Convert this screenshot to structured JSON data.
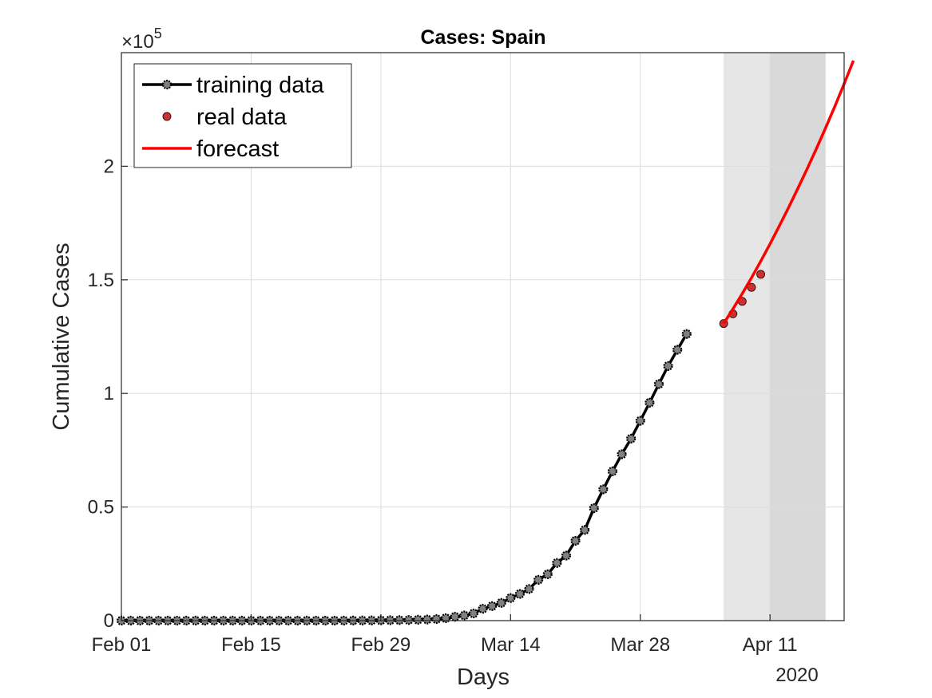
{
  "chart_data": {
    "type": "line",
    "title": "Cases: Spain",
    "xlabel": "Days",
    "ylabel": "Cumulative Cases",
    "exponent_label": "×10",
    "exponent_power": "5",
    "year_label": "2020",
    "x_start_date": "2020-02-01",
    "xlim": [
      "2020-02-01",
      "2020-04-19"
    ],
    "ylim": [
      0,
      250000
    ],
    "x_tick_labels": [
      "Feb 01",
      "Feb 15",
      "Feb 29",
      "Mar 14",
      "Mar 28",
      "Apr 11"
    ],
    "x_tick_dates": [
      "2020-02-01",
      "2020-02-15",
      "2020-02-29",
      "2020-03-14",
      "2020-03-28",
      "2020-04-11"
    ],
    "y_ticks": [
      0,
      0.5,
      1,
      1.5,
      2
    ],
    "y_tick_labels": [
      "0",
      "0.5",
      "1",
      "1.5",
      "2"
    ],
    "y_scale": 100000,
    "grid": true,
    "legend_position": "top-left",
    "shaded_regions": [
      {
        "from": "2020-04-06",
        "to": "2020-04-11",
        "color": "#e6e6e6"
      },
      {
        "from": "2020-04-11",
        "to": "2020-04-17",
        "color": "#d9d9d9"
      }
    ],
    "series": [
      {
        "name": "training data",
        "color": "#000000",
        "marker_color": "#808080",
        "start_date": "2020-02-01",
        "values": [
          0,
          0,
          0,
          0,
          0,
          0,
          0,
          0,
          0,
          2,
          2,
          2,
          2,
          2,
          2,
          2,
          2,
          2,
          2,
          2,
          2,
          2,
          2,
          2,
          2,
          32,
          45,
          84,
          120,
          165,
          222,
          259,
          400,
          500,
          673,
          1073,
          1695,
          2277,
          3146,
          5232,
          6391,
          7798,
          9942,
          11748,
          13910,
          17963,
          20410,
          25374,
          28603,
          35136,
          39885,
          49515,
          57786,
          65719,
          73235,
          80110,
          87956,
          95923,
          104118,
          112065,
          119199,
          126168
        ]
      },
      {
        "name": "real data",
        "color": "#c83232",
        "start_date": "2020-04-06",
        "values": [
          130759,
          135032,
          140510,
          146690,
          152446
        ]
      },
      {
        "name": "forecast",
        "color": "#ff0000",
        "start_date": "2020-04-06",
        "values": [
          130759,
          137200,
          143900,
          150900,
          158200,
          165800,
          173700,
          181800,
          190200,
          198800,
          207700,
          216900,
          226400,
          236300,
          246500
        ]
      }
    ]
  }
}
